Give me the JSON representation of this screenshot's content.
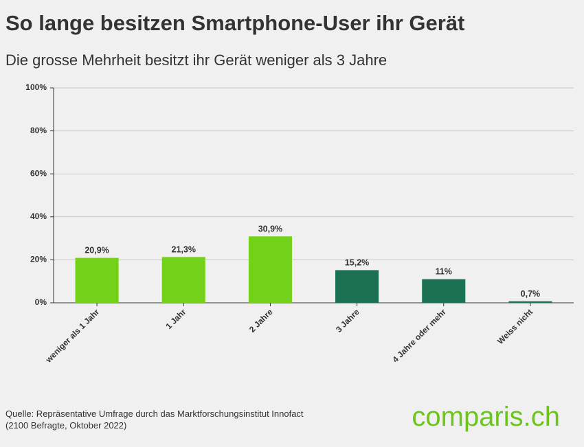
{
  "chart_data": {
    "type": "bar",
    "title": "So lange besitzen Smartphone-User ihr Gerät",
    "subtitle": "Die grosse Mehrheit besitzt ihr Gerät weniger als 3 Jahre",
    "categories": [
      "weniger als 1 Jahr",
      "1 Jahr",
      "2 Jahre",
      "3 Jahre",
      "4 Jahre oder mehr",
      "Weiss nicht"
    ],
    "values": [
      20.9,
      21.3,
      30.9,
      15.2,
      11,
      0.7
    ],
    "value_labels": [
      "20,9%",
      "21,3%",
      "30,9%",
      "15,2%",
      "11%",
      "0,7%"
    ],
    "colors": [
      "#74d11a",
      "#74d11a",
      "#74d11a",
      "#1b7152",
      "#1b7152",
      "#1b7152"
    ],
    "ylim": [
      0,
      100
    ],
    "yticks": [
      {
        "value": 0,
        "label": "0%"
      },
      {
        "value": 20,
        "label": "20%"
      },
      {
        "value": 40,
        "label": "40%"
      },
      {
        "value": 60,
        "label": "60%"
      },
      {
        "value": 80,
        "label": "80%"
      },
      {
        "value": 100,
        "label": "100%"
      }
    ],
    "grid": true,
    "source": [
      "Quelle: Repräsentative Umfrage durch das Marktforschungsinstitut Innofact",
      "(2100 Befragte, Oktober 2022)"
    ],
    "logo": "comparis.ch"
  }
}
